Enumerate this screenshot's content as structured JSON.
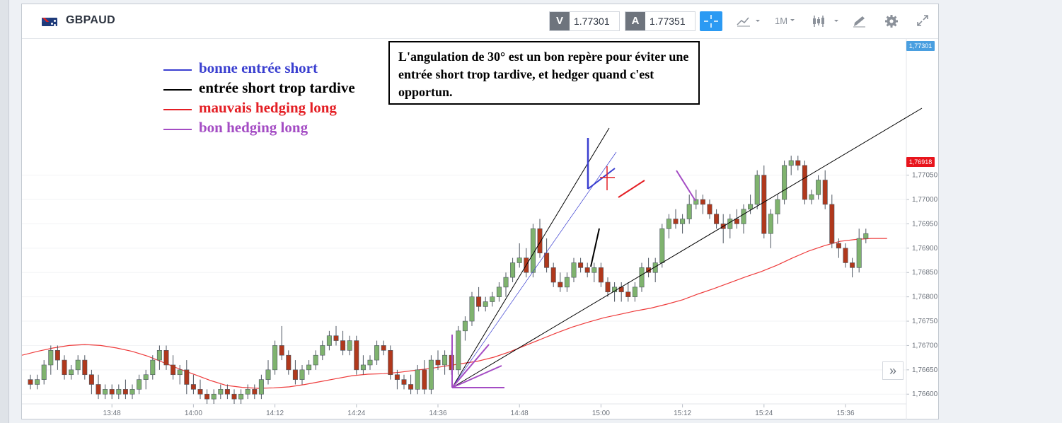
{
  "instrument": {
    "symbol": "GBPAUD"
  },
  "toolbar": {
    "sell_label": "V",
    "sell_price": "1.77301",
    "buy_label": "A",
    "buy_price": "1.77351",
    "timeframe": "1M"
  },
  "legend": [
    {
      "label": "bonne entrée short",
      "color": "#3a3fd0"
    },
    {
      "label": "entrée short trop tardive",
      "color": "#000000"
    },
    {
      "label": "mauvais hedging long",
      "color": "#e41f25"
    },
    {
      "label": "bon hedging long",
      "color": "#a44cc4"
    }
  ],
  "note": "L'angulation de 30° est un bon repère pour éviter une entrée short trop tardive, et hedger quand c'est opportun.",
  "chart_data": {
    "type": "candlestick",
    "y_ticks": [
      "1,77050",
      "1,77000",
      "1,76950",
      "1,76900",
      "1,76850",
      "1,76800",
      "1,76750",
      "1,76700",
      "1,76650",
      "1,76600"
    ],
    "x_ticks": [
      "13:48",
      "14:00",
      "14:12",
      "14:24",
      "14:36",
      "14:48",
      "15:00",
      "15:12",
      "15:24",
      "15:36"
    ],
    "ylim": [
      1.7658,
      1.7733
    ],
    "current_price_tag": "1,77301",
    "ma_value_tag": "1,76918",
    "colors": {
      "up": "#7fb36e",
      "down": "#b0381c",
      "moving_average": "#ee3b3b",
      "up_tag": "#4a9fe0",
      "ma_tag": "#e8141c"
    },
    "candles_ohlc": [
      [
        1.7663,
        1.7664,
        1.7661,
        1.7662
      ],
      [
        1.7662,
        1.7664,
        1.7661,
        1.7663
      ],
      [
        1.7663,
        1.7667,
        1.7662,
        1.7666
      ],
      [
        1.7666,
        1.767,
        1.7664,
        1.7669
      ],
      [
        1.7669,
        1.767,
        1.7665,
        1.7667
      ],
      [
        1.7667,
        1.7668,
        1.7663,
        1.7664
      ],
      [
        1.7664,
        1.7666,
        1.7663,
        1.7665
      ],
      [
        1.7665,
        1.7668,
        1.7664,
        1.7667
      ],
      [
        1.7667,
        1.7668,
        1.7663,
        1.7664
      ],
      [
        1.7664,
        1.7665,
        1.766,
        1.7662
      ],
      [
        1.7662,
        1.7664,
        1.7659,
        1.766
      ],
      [
        1.766,
        1.7662,
        1.7659,
        1.7661
      ],
      [
        1.7661,
        1.7662,
        1.7659,
        1.766
      ],
      [
        1.766,
        1.7662,
        1.7659,
        1.7661
      ],
      [
        1.7661,
        1.7663,
        1.7659,
        1.766
      ],
      [
        1.766,
        1.7662,
        1.7659,
        1.7661
      ],
      [
        1.7661,
        1.7664,
        1.766,
        1.7663
      ],
      [
        1.7663,
        1.7665,
        1.7661,
        1.7664
      ],
      [
        1.7664,
        1.7668,
        1.7663,
        1.7667
      ],
      [
        1.7667,
        1.767,
        1.7665,
        1.7669
      ],
      [
        1.7669,
        1.767,
        1.7665,
        1.7666
      ],
      [
        1.7666,
        1.7668,
        1.7663,
        1.7664
      ],
      [
        1.7664,
        1.7666,
        1.7662,
        1.7665
      ],
      [
        1.7665,
        1.7667,
        1.766,
        1.7662
      ],
      [
        1.7662,
        1.7664,
        1.766,
        1.7661
      ],
      [
        1.7661,
        1.7663,
        1.7659,
        1.766
      ],
      [
        1.766,
        1.7661,
        1.7658,
        1.7659
      ],
      [
        1.7659,
        1.7661,
        1.7658,
        1.766
      ],
      [
        1.766,
        1.7662,
        1.7659,
        1.7661
      ],
      [
        1.7661,
        1.7662,
        1.7659,
        1.766
      ],
      [
        1.766,
        1.7661,
        1.7658,
        1.7659
      ],
      [
        1.7659,
        1.7661,
        1.7658,
        1.766
      ],
      [
        1.766,
        1.7662,
        1.7659,
        1.7661
      ],
      [
        1.7661,
        1.7662,
        1.7659,
        1.766
      ],
      [
        1.766,
        1.7664,
        1.7659,
        1.7663
      ],
      [
        1.7663,
        1.7667,
        1.7662,
        1.7665
      ],
      [
        1.7665,
        1.7671,
        1.7664,
        1.767
      ],
      [
        1.767,
        1.7674,
        1.7667,
        1.7668
      ],
      [
        1.7668,
        1.7669,
        1.7664,
        1.7665
      ],
      [
        1.7665,
        1.7667,
        1.7662,
        1.7663
      ],
      [
        1.7663,
        1.7666,
        1.7662,
        1.7665
      ],
      [
        1.7665,
        1.7667,
        1.7664,
        1.7666
      ],
      [
        1.7666,
        1.7669,
        1.7665,
        1.7668
      ],
      [
        1.7668,
        1.7671,
        1.7667,
        1.767
      ],
      [
        1.767,
        1.7673,
        1.7669,
        1.7672
      ],
      [
        1.7672,
        1.7674,
        1.767,
        1.7671
      ],
      [
        1.7671,
        1.7673,
        1.7668,
        1.7669
      ],
      [
        1.7669,
        1.7672,
        1.7668,
        1.7671
      ],
      [
        1.7671,
        1.7672,
        1.7664,
        1.7665
      ],
      [
        1.7665,
        1.7668,
        1.7664,
        1.7666
      ],
      [
        1.7666,
        1.7668,
        1.7665,
        1.7667
      ],
      [
        1.7667,
        1.7671,
        1.7666,
        1.767
      ],
      [
        1.767,
        1.7671,
        1.7668,
        1.7669
      ],
      [
        1.7669,
        1.767,
        1.7663,
        1.7664
      ],
      [
        1.7664,
        1.7665,
        1.7661,
        1.7663
      ],
      [
        1.7663,
        1.7664,
        1.7661,
        1.7662
      ],
      [
        1.7662,
        1.7664,
        1.766,
        1.7661
      ],
      [
        1.7661,
        1.7666,
        1.766,
        1.7665
      ],
      [
        1.7665,
        1.7667,
        1.766,
        1.7661
      ],
      [
        1.7661,
        1.7668,
        1.766,
        1.7667
      ],
      [
        1.7667,
        1.7669,
        1.7665,
        1.7666
      ],
      [
        1.7666,
        1.7669,
        1.7664,
        1.7668
      ],
      [
        1.7668,
        1.7669,
        1.7664,
        1.7665
      ],
      [
        1.7665,
        1.7674,
        1.7664,
        1.7673
      ],
      [
        1.7673,
        1.7676,
        1.7671,
        1.7675
      ],
      [
        1.7675,
        1.7681,
        1.7674,
        1.768
      ],
      [
        1.768,
        1.7682,
        1.7677,
        1.7678
      ],
      [
        1.7678,
        1.768,
        1.7677,
        1.7679
      ],
      [
        1.7679,
        1.7681,
        1.7678,
        1.768
      ],
      [
        1.768,
        1.7683,
        1.7679,
        1.7682
      ],
      [
        1.7682,
        1.7685,
        1.768,
        1.7684
      ],
      [
        1.7684,
        1.7688,
        1.7683,
        1.7687
      ],
      [
        1.7687,
        1.7691,
        1.7686,
        1.7688
      ],
      [
        1.7688,
        1.769,
        1.7684,
        1.7685
      ],
      [
        1.7685,
        1.7695,
        1.7684,
        1.7694
      ],
      [
        1.7694,
        1.7696,
        1.7688,
        1.7689
      ],
      [
        1.7689,
        1.7692,
        1.7685,
        1.7686
      ],
      [
        1.7686,
        1.7687,
        1.7682,
        1.7683
      ],
      [
        1.7683,
        1.7685,
        1.7681,
        1.7682
      ],
      [
        1.7682,
        1.7685,
        1.7681,
        1.7684
      ],
      [
        1.7684,
        1.7688,
        1.7683,
        1.7687
      ],
      [
        1.7687,
        1.7688,
        1.7685,
        1.7686
      ],
      [
        1.7686,
        1.7687,
        1.7684,
        1.7685
      ],
      [
        1.7685,
        1.7687,
        1.7683,
        1.7686
      ],
      [
        1.7686,
        1.7687,
        1.7682,
        1.7683
      ],
      [
        1.7683,
        1.7684,
        1.768,
        1.7681
      ],
      [
        1.7681,
        1.7683,
        1.7679,
        1.7682
      ],
      [
        1.7682,
        1.7683,
        1.7679,
        1.7681
      ],
      [
        1.7681,
        1.7683,
        1.7679,
        1.768
      ],
      [
        1.768,
        1.7683,
        1.7679,
        1.7682
      ],
      [
        1.7682,
        1.7687,
        1.7681,
        1.7686
      ],
      [
        1.7686,
        1.7688,
        1.7684,
        1.7685
      ],
      [
        1.7685,
        1.7688,
        1.7683,
        1.7687
      ],
      [
        1.7687,
        1.7695,
        1.7686,
        1.7694
      ],
      [
        1.7694,
        1.7697,
        1.7692,
        1.7696
      ],
      [
        1.7696,
        1.7698,
        1.7694,
        1.7695
      ],
      [
        1.7695,
        1.7697,
        1.7693,
        1.7696
      ],
      [
        1.7696,
        1.7701,
        1.7695,
        1.7699
      ],
      [
        1.7699,
        1.7702,
        1.7698,
        1.77
      ],
      [
        1.77,
        1.7701,
        1.7697,
        1.7699
      ],
      [
        1.7699,
        1.77,
        1.7696,
        1.7697
      ],
      [
        1.7697,
        1.7698,
        1.7694,
        1.7695
      ],
      [
        1.7695,
        1.7697,
        1.7691,
        1.7694
      ],
      [
        1.7694,
        1.7697,
        1.7692,
        1.7696
      ],
      [
        1.7696,
        1.7698,
        1.7694,
        1.7695
      ],
      [
        1.7695,
        1.7699,
        1.7693,
        1.7698
      ],
      [
        1.7698,
        1.7701,
        1.7697,
        1.7699
      ],
      [
        1.7699,
        1.7706,
        1.7698,
        1.7705
      ],
      [
        1.7705,
        1.7707,
        1.7692,
        1.7693
      ],
      [
        1.7693,
        1.7698,
        1.769,
        1.7697
      ],
      [
        1.7697,
        1.7701,
        1.7695,
        1.77
      ],
      [
        1.77,
        1.7708,
        1.7699,
        1.7707
      ],
      [
        1.7707,
        1.7709,
        1.7705,
        1.7708
      ],
      [
        1.7708,
        1.7709,
        1.7706,
        1.7707
      ],
      [
        1.7707,
        1.7708,
        1.7699,
        1.77
      ],
      [
        1.77,
        1.7702,
        1.7699,
        1.7701
      ],
      [
        1.7701,
        1.7705,
        1.77,
        1.7704
      ],
      [
        1.7704,
        1.7706,
        1.7698,
        1.7699
      ],
      [
        1.7699,
        1.7701,
        1.769,
        1.7691
      ],
      [
        1.7691,
        1.7692,
        1.7688,
        1.769
      ],
      [
        1.769,
        1.7691,
        1.7686,
        1.7687
      ],
      [
        1.7687,
        1.7688,
        1.7684,
        1.7686
      ],
      [
        1.7686,
        1.7694,
        1.7685,
        1.7692
      ],
      [
        1.7692,
        1.7694,
        1.7691,
        1.7693
      ]
    ],
    "moving_average": [
      1.7668,
      1.76688,
      1.76695,
      1.767,
      1.76702,
      1.767,
      1.76695,
      1.76688,
      1.76678,
      1.76665,
      1.76652,
      1.7664,
      1.76628,
      1.76618,
      1.76614,
      1.76612,
      1.76613,
      1.76615,
      1.7662,
      1.76626,
      1.76632,
      1.76638,
      1.76641,
      1.76642,
      1.76645,
      1.76649,
      1.76653,
      1.76658,
      1.76663,
      1.76668,
      1.76676,
      1.76687,
      1.767,
      1.76713,
      1.76726,
      1.76738,
      1.76748,
      1.76757,
      1.76764,
      1.76771,
      1.76777,
      1.76785,
      1.76794,
      1.76806,
      1.76817,
      1.76829,
      1.76841,
      1.76852,
      1.76865,
      1.7688,
      1.76894,
      1.76905,
      1.76914,
      1.76918,
      1.7692,
      1.7692
    ]
  }
}
